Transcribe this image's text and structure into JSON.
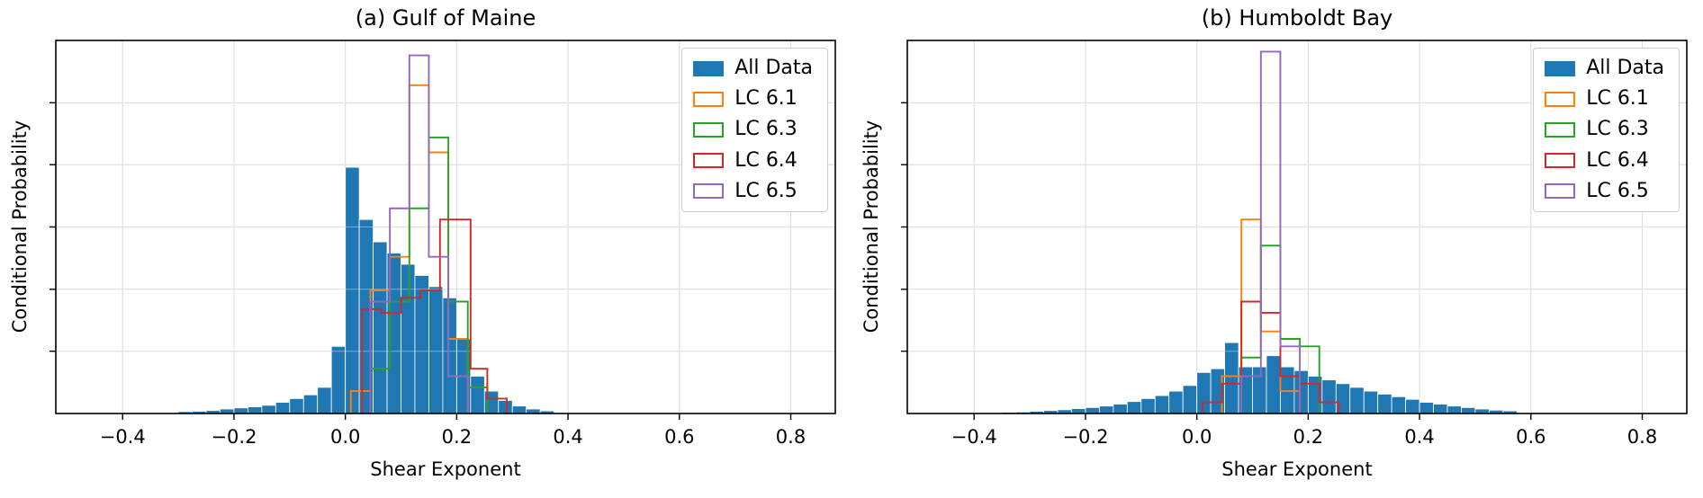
{
  "colors": {
    "all_data": "#1f77b4",
    "lc61": "#ff7f0e",
    "lc63": "#2ca02c",
    "lc64": "#d62728",
    "lc65": "#9467bd",
    "grid": "#c8c8c8",
    "spine": "#000000",
    "legend_border": "#cccccc"
  },
  "chart_data": [
    {
      "type": "histogram",
      "title": "(a) Gulf of Maine",
      "xlabel": "Shear Exponent",
      "ylabel": "Conditional Probability",
      "xlim": [
        -0.52,
        0.88
      ],
      "ylim": [
        0,
        1.0
      ],
      "xticks": [
        -0.4,
        -0.2,
        0.0,
        0.2,
        0.4,
        0.6,
        0.8
      ],
      "xtick_labels": [
        "−0.4",
        "−0.2",
        "0.0",
        "0.2",
        "0.4",
        "0.6",
        "0.8"
      ],
      "yticks": [
        0.167,
        0.333,
        0.5,
        0.667,
        0.833
      ],
      "ytick_labels": [
        "",
        "",
        "",
        "",
        ""
      ],
      "grid": true,
      "legend_position": "upper right",
      "all_data": {
        "label": "All Data",
        "bin_width": 0.025,
        "bin_starts": [
          -0.3,
          -0.275,
          -0.25,
          -0.225,
          -0.2,
          -0.175,
          -0.15,
          -0.125,
          -0.1,
          -0.075,
          -0.05,
          -0.025,
          0.0,
          0.025,
          0.05,
          0.075,
          0.1,
          0.125,
          0.15,
          0.175,
          0.2,
          0.225,
          0.25,
          0.275,
          0.3,
          0.325,
          0.35
        ],
        "heights": [
          0.005,
          0.006,
          0.008,
          0.012,
          0.015,
          0.018,
          0.022,
          0.03,
          0.04,
          0.05,
          0.07,
          0.18,
          0.66,
          0.52,
          0.46,
          0.43,
          0.4,
          0.37,
          0.34,
          0.31,
          0.2,
          0.1,
          0.06,
          0.035,
          0.02,
          0.012,
          0.007
        ]
      },
      "series": [
        {
          "name": "LC 6.1",
          "color_key": "lc61",
          "edges": [
            0.01,
            0.045,
            0.08,
            0.115,
            0.15,
            0.185,
            0.22
          ],
          "values": [
            0.06,
            0.33,
            0.42,
            0.88,
            0.7,
            0.2
          ]
        },
        {
          "name": "LC 6.3",
          "color_key": "lc63",
          "edges": [
            0.045,
            0.08,
            0.115,
            0.15,
            0.185,
            0.22,
            0.255
          ],
          "values": [
            0.12,
            0.3,
            0.55,
            0.74,
            0.3,
            0.07
          ]
        },
        {
          "name": "LC 6.4",
          "color_key": "lc64",
          "edges": [
            0.03,
            0.065,
            0.1,
            0.135,
            0.17,
            0.225,
            0.255,
            0.29
          ],
          "values": [
            0.28,
            0.27,
            0.31,
            0.33,
            0.52,
            0.12,
            0.04
          ]
        },
        {
          "name": "LC 6.5",
          "color_key": "lc65",
          "edges": [
            0.045,
            0.08,
            0.115,
            0.15,
            0.185,
            0.22
          ],
          "values": [
            0.3,
            0.55,
            0.96,
            0.42,
            0.1
          ]
        }
      ]
    },
    {
      "type": "histogram",
      "title": "(b) Humboldt Bay",
      "xlabel": "Shear Exponent",
      "ylabel": "Conditional Probability",
      "xlim": [
        -0.52,
        0.88
      ],
      "ylim": [
        0,
        1.0
      ],
      "xticks": [
        -0.4,
        -0.2,
        0.0,
        0.2,
        0.4,
        0.6,
        0.8
      ],
      "xtick_labels": [
        "−0.4",
        "−0.2",
        "0.0",
        "0.2",
        "0.4",
        "0.6",
        "0.8"
      ],
      "yticks": [
        0.167,
        0.333,
        0.5,
        0.667,
        0.833
      ],
      "ytick_labels": [
        "",
        "",
        "",
        "",
        ""
      ],
      "grid": true,
      "legend_position": "upper right",
      "all_data": {
        "label": "All Data",
        "bin_width": 0.025,
        "bin_starts": [
          -0.35,
          -0.325,
          -0.3,
          -0.275,
          -0.25,
          -0.225,
          -0.2,
          -0.175,
          -0.15,
          -0.125,
          -0.1,
          -0.075,
          -0.05,
          -0.025,
          0.0,
          0.025,
          0.05,
          0.075,
          0.1,
          0.125,
          0.15,
          0.175,
          0.2,
          0.225,
          0.25,
          0.275,
          0.3,
          0.325,
          0.35,
          0.375,
          0.4,
          0.425,
          0.45,
          0.475,
          0.5,
          0.525,
          0.55
        ],
        "heights": [
          0.003,
          0.004,
          0.006,
          0.008,
          0.01,
          0.013,
          0.016,
          0.02,
          0.025,
          0.032,
          0.04,
          0.048,
          0.06,
          0.075,
          0.11,
          0.12,
          0.19,
          0.125,
          0.125,
          0.155,
          0.125,
          0.115,
          0.1,
          0.09,
          0.08,
          0.07,
          0.06,
          0.052,
          0.045,
          0.038,
          0.03,
          0.025,
          0.02,
          0.016,
          0.012,
          0.009,
          0.007
        ]
      },
      "series": [
        {
          "name": "LC 6.1",
          "color_key": "lc61",
          "edges": [
            0.045,
            0.08,
            0.115,
            0.15,
            0.185
          ],
          "values": [
            0.1,
            0.52,
            0.22,
            0.06
          ]
        },
        {
          "name": "LC 6.3",
          "color_key": "lc63",
          "edges": [
            0.08,
            0.115,
            0.15,
            0.185,
            0.22
          ],
          "values": [
            0.15,
            0.45,
            0.2,
            0.18
          ]
        },
        {
          "name": "LC 6.4",
          "color_key": "lc64",
          "edges": [
            0.01,
            0.045,
            0.08,
            0.115,
            0.15,
            0.185,
            0.22,
            0.255
          ],
          "values": [
            0.03,
            0.08,
            0.3,
            0.27,
            0.1,
            0.08,
            0.03
          ]
        },
        {
          "name": "LC 6.5",
          "color_key": "lc65",
          "edges": [
            0.08,
            0.115,
            0.15,
            0.185
          ],
          "values": [
            0.1,
            0.97,
            0.18
          ]
        }
      ]
    }
  ]
}
